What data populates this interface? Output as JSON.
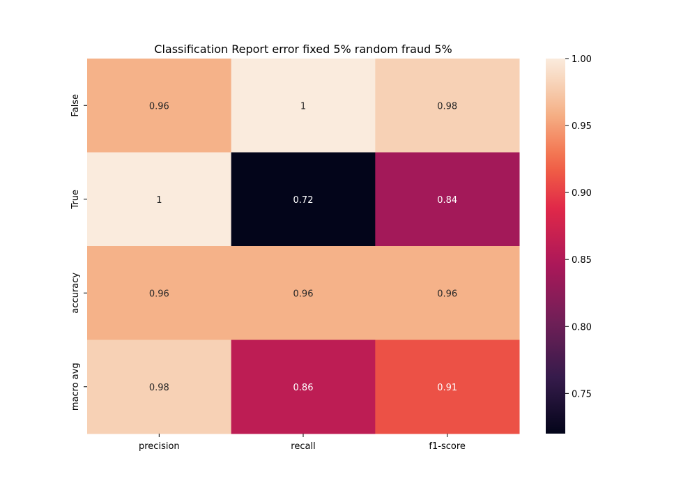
{
  "chart_data": {
    "type": "heatmap",
    "title": "Classification Report error fixed 5% random fraud 5%",
    "xlabel": "",
    "ylabel": "",
    "columns": [
      "precision",
      "recall",
      "f1-score"
    ],
    "rows": [
      "False",
      "True",
      "accuracy",
      "macro avg"
    ],
    "values": [
      [
        0.96,
        1.0,
        0.98
      ],
      [
        1.0,
        0.72,
        0.84
      ],
      [
        0.96,
        0.96,
        0.96
      ],
      [
        0.98,
        0.86,
        0.91
      ]
    ],
    "annotations": [
      [
        "0.96",
        "1",
        "0.98"
      ],
      [
        "1",
        "0.72",
        "0.84"
      ],
      [
        "0.96",
        "0.96",
        "0.96"
      ],
      [
        "0.98",
        "0.86",
        "0.91"
      ]
    ],
    "colorbar": {
      "range": [
        0.72,
        1.0
      ],
      "ticks": [
        "0.75",
        "0.80",
        "0.85",
        "0.90",
        "0.95",
        "1.00"
      ],
      "colormap": "rocket"
    }
  }
}
